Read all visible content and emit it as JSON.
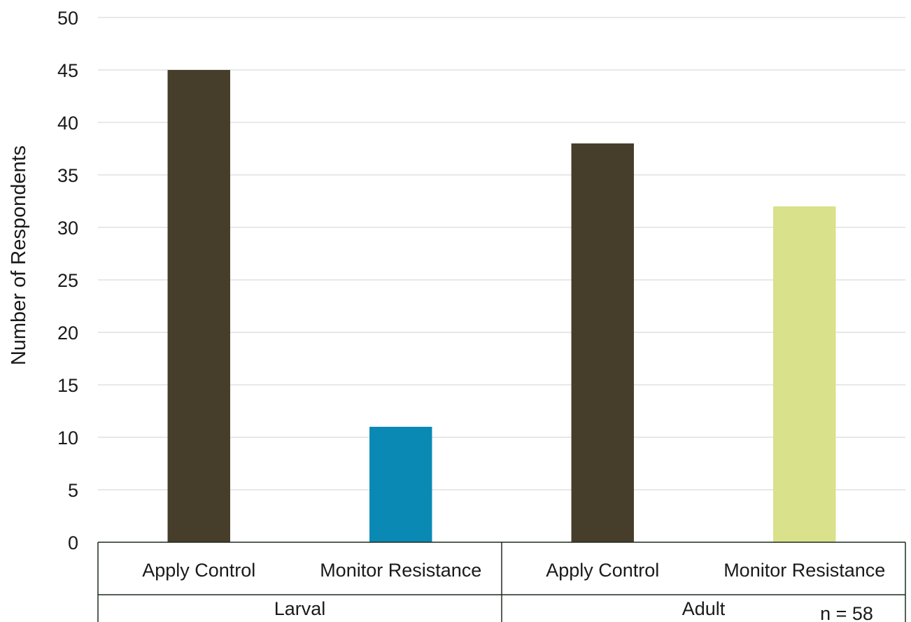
{
  "chart_data": {
    "type": "bar",
    "ylabel": "Number of Respondents",
    "ylim": [
      0,
      50
    ],
    "yticks": [
      0,
      5,
      10,
      15,
      20,
      25,
      30,
      35,
      40,
      45,
      50
    ],
    "grid": true,
    "groups": [
      {
        "label": "Larval",
        "bars": [
          {
            "category": "Apply Control",
            "value": 45,
            "color": "#463d2a"
          },
          {
            "category": "Monitor Resistance",
            "value": 11,
            "color": "#0a89b5"
          }
        ]
      },
      {
        "label": "Adult",
        "bars": [
          {
            "category": "Apply Control",
            "value": 38,
            "color": "#463d2a"
          },
          {
            "category": "Monitor Resistance",
            "value": 32,
            "color": "#d9e18a"
          }
        ]
      }
    ],
    "annotation": "n = 58"
  }
}
